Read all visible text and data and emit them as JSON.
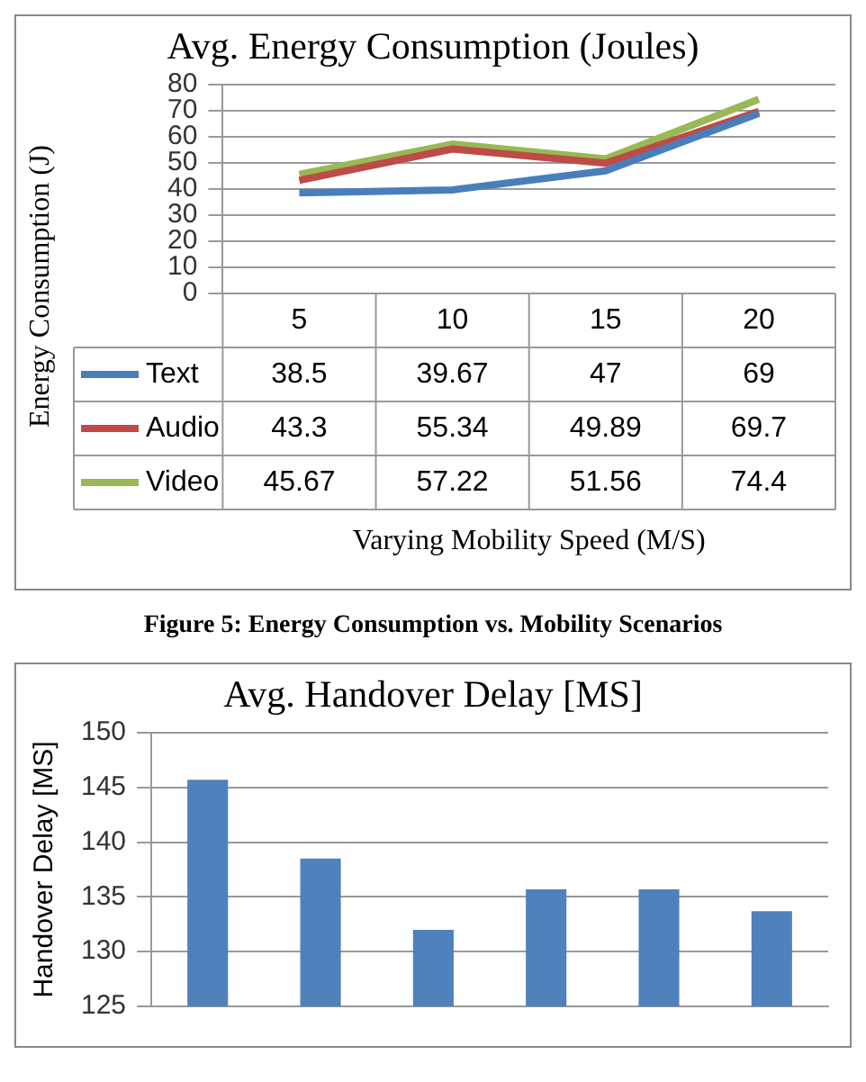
{
  "chart_data": [
    {
      "type": "line",
      "title": "Avg. Energy Consumption (Joules)",
      "xlabel": "Varying Mobility Speed (M/S)",
      "ylabel": "Energy Consumption (J)",
      "categories": [
        "5",
        "10",
        "15",
        "20"
      ],
      "series": [
        {
          "name": "Text",
          "color": "#4a7ebb",
          "values": [
            38.5,
            39.67,
            47,
            69
          ]
        },
        {
          "name": "Audio",
          "color": "#be4b48",
          "values": [
            43.3,
            55.34,
            49.89,
            69.7
          ]
        },
        {
          "name": "Video",
          "color": "#98b954",
          "values": [
            45.67,
            57.22,
            51.56,
            74.4
          ]
        }
      ],
      "ylim": [
        0,
        80
      ],
      "yticks": [
        0,
        10,
        20,
        30,
        40,
        50,
        60,
        70,
        80
      ],
      "grid": "y",
      "legend": "bottom",
      "data_labels": true,
      "marker": "none",
      "annotations": [
        "Figure 5: Energy Consumption vs. Mobility Scenarios"
      ]
    },
    {
      "type": "bar",
      "title": "Avg. Handover Delay [MS]",
      "ylabel": "Handover Delay [MS]",
      "categories": [
        null,
        null,
        null,
        null,
        null,
        null
      ],
      "values": [
        145.7,
        138.5,
        132,
        135.7,
        135.7,
        133.7
      ],
      "color": "#4f81bd",
      "ylim": [
        125,
        150
      ],
      "yticks": [
        125,
        130,
        135,
        140,
        145,
        150
      ],
      "grid": "y"
    }
  ]
}
